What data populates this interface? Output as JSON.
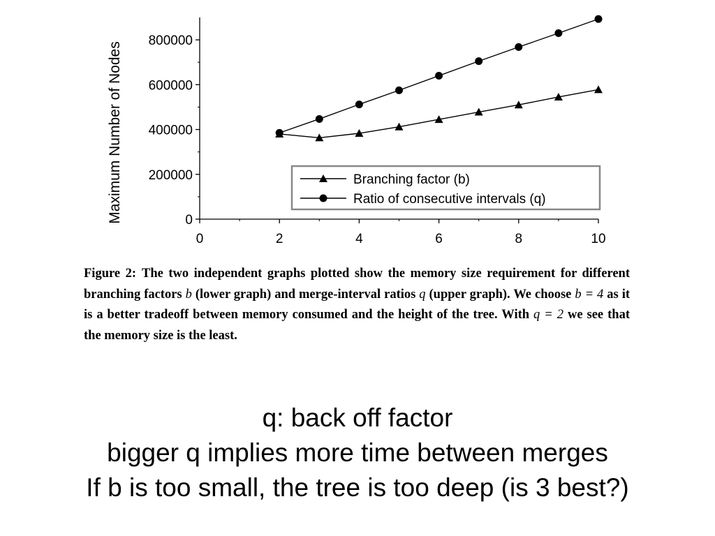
{
  "chart_data": {
    "type": "line",
    "xlabel": "",
    "ylabel": "Maximum Number of Nodes",
    "xlim": [
      0,
      10
    ],
    "ylim": [
      0,
      900000
    ],
    "x_ticks": [
      "0",
      "2",
      "4",
      "6",
      "8",
      "10"
    ],
    "y_ticks": [
      "0",
      "200000",
      "400000",
      "600000",
      "800000"
    ],
    "legend_position": "bottom-right",
    "grid": false,
    "series": [
      {
        "name": "Branching factor (b)",
        "marker": "triangle",
        "x": [
          2,
          3,
          4,
          5,
          6,
          7,
          8,
          9,
          10
        ],
        "values": [
          380000,
          363000,
          383000,
          412000,
          445000,
          478000,
          510000,
          545000,
          578000
        ]
      },
      {
        "name": "Ratio of consecutive intervals (q)",
        "marker": "circle",
        "x": [
          2,
          3,
          4,
          5,
          6,
          7,
          8,
          9,
          10
        ],
        "values": [
          385000,
          447000,
          512000,
          575000,
          640000,
          705000,
          768000,
          830000,
          893000
        ]
      }
    ]
  },
  "caption": {
    "label": "Figure 2:",
    "t1": "The two independent graphs plotted show the memory size requirement for different branching factors ",
    "b": "b",
    "t2": " (lower graph) and merge-interval ratios ",
    "q": "q",
    "t3": " (upper graph). We choose ",
    "eq_b": "b = 4",
    "t4": " as it is a better tradeoff between memory consumed and the height of the tree. With ",
    "eq_q": "q = 2",
    "t5": " we see that the memory size is the least."
  },
  "notes": [
    "q: back off factor",
    "bigger q implies more time between merges",
    "If b is too small, the tree is too deep (is 3 best?)"
  ]
}
